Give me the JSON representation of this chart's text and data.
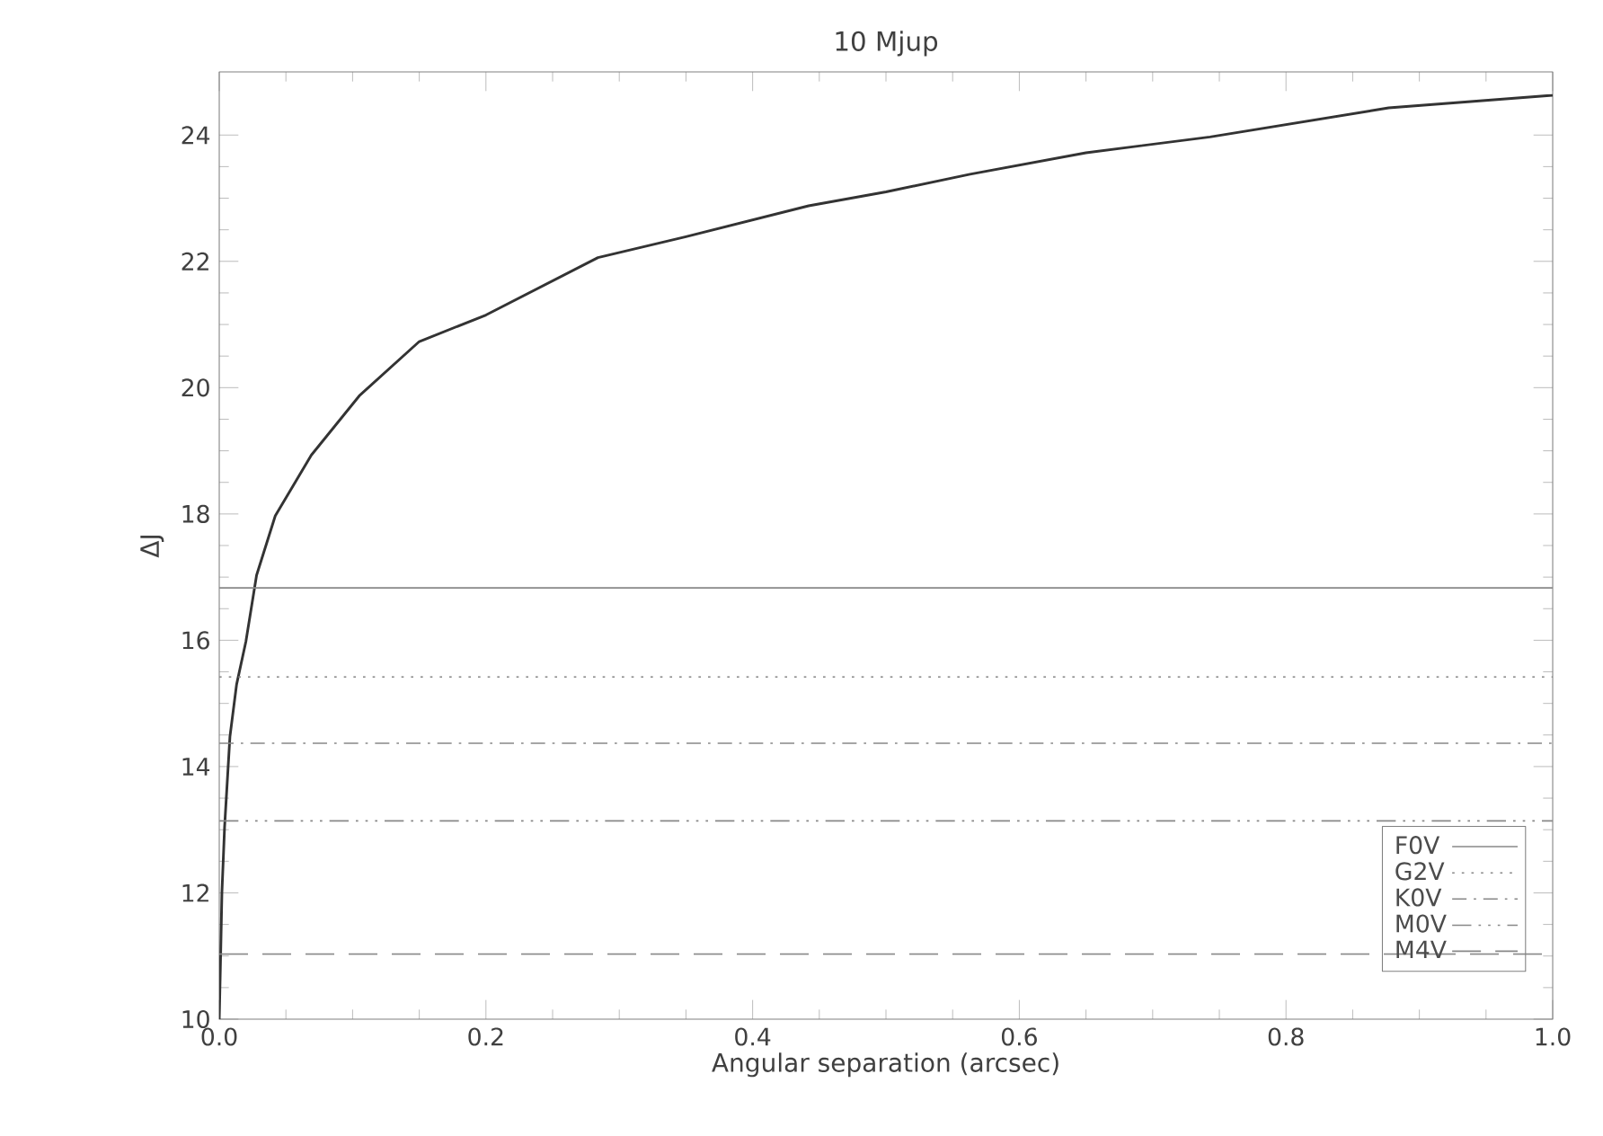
{
  "chart_data": {
    "type": "line",
    "title": "10 Mjup",
    "xlabel": "Angular separation (arcsec)",
    "ylabel": "ΔJ",
    "xlim": [
      0,
      1
    ],
    "ylim": [
      10,
      25
    ],
    "xticks": [
      {
        "value": 0,
        "label": "0.0"
      },
      {
        "value": 0.2,
        "label": "0.2"
      },
      {
        "value": 0.4,
        "label": "0.4"
      },
      {
        "value": 0.6,
        "label": "0.6"
      },
      {
        "value": 0.8,
        "label": "0.8"
      },
      {
        "value": 1,
        "label": "1.0"
      }
    ],
    "yticks": [
      10,
      12,
      14,
      16,
      18,
      20,
      22,
      24
    ],
    "grid": false,
    "legend": "bottom right",
    "series": [
      {
        "color": "#333333",
        "line_style": "solid",
        "x": [
          0,
          0.001,
          0.002,
          0.004,
          0.008,
          0.013,
          0.02,
          0.028,
          0.042,
          0.069,
          0.105,
          0.15,
          0.2,
          0.284,
          0.35,
          0.442,
          0.5,
          0.563,
          0.65,
          0.743,
          0.877,
          1.0
        ],
        "values": [
          10.0,
          10.97,
          12.0,
          13.04,
          14.47,
          15.3,
          15.98,
          17.03,
          17.97,
          18.93,
          19.87,
          20.73,
          21.15,
          22.06,
          22.39,
          22.88,
          23.1,
          23.38,
          23.72,
          23.97,
          24.43,
          24.63
        ]
      },
      {
        "name": "F0V",
        "color": "#888888",
        "line_style": "solid",
        "x": [
          0,
          1
        ],
        "values": [
          16.83,
          16.83
        ]
      },
      {
        "name": "G2V",
        "color": "#888888",
        "line_style": "dotted",
        "x": [
          0,
          1
        ],
        "values": [
          15.42,
          15.42
        ]
      },
      {
        "name": "K0V",
        "color": "#888888",
        "line_style": "dashdot",
        "x": [
          0,
          1
        ],
        "values": [
          14.37,
          14.37
        ]
      },
      {
        "name": "M0V",
        "color": "#888888",
        "line_style": "dashdotdotdot",
        "x": [
          0,
          1
        ],
        "values": [
          13.14,
          13.14
        ]
      },
      {
        "name": "M4V",
        "color": "#888888",
        "line_style": "longdash",
        "x": [
          0,
          1
        ],
        "values": [
          11.03,
          11.03
        ]
      }
    ]
  }
}
